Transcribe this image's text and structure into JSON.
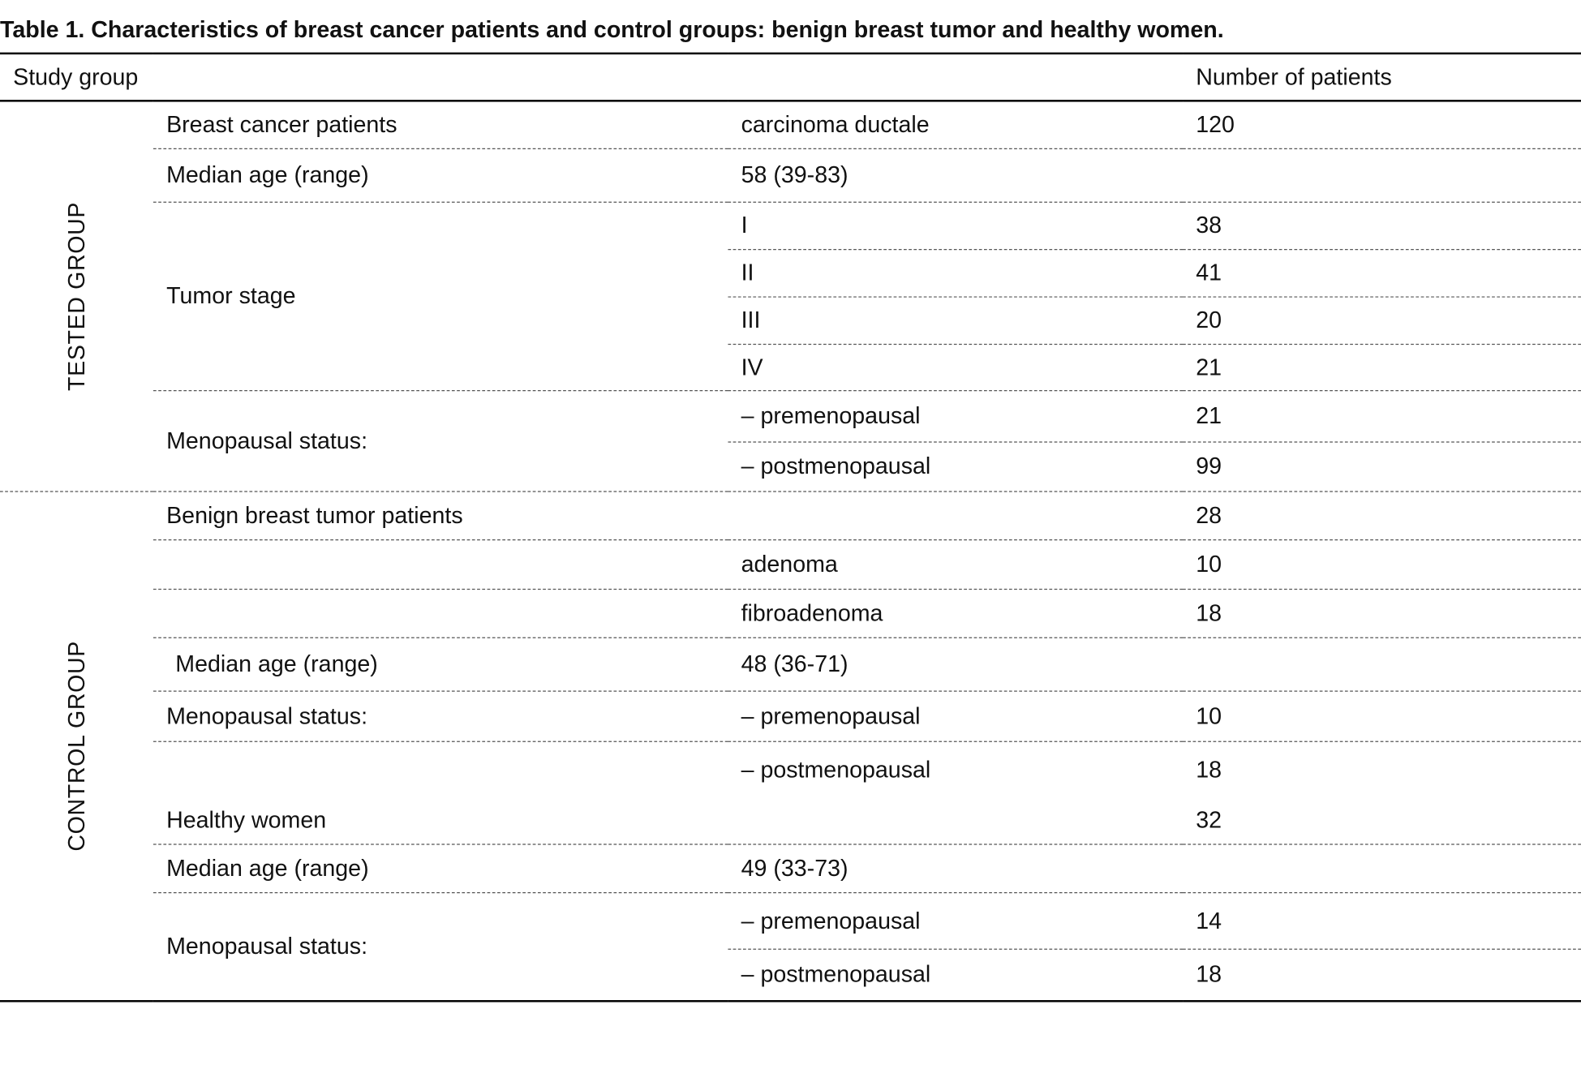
{
  "caption": "Table 1. Characteristics of breast cancer patients and control groups: benign breast tumor and healthy women.",
  "header": {
    "study_group": "Study group",
    "number_of_patients": "Number of patients"
  },
  "tested": {
    "group_label": "TESTED GROUP",
    "breast_cancer_label": "Breast cancer patients",
    "breast_cancer_type": "carcinoma ductale",
    "breast_cancer_count": "120",
    "median_age_label": "Median age (range)",
    "median_age_value": "58 (39-83)",
    "tumor_stage_label": "Tumor stage",
    "stages": [
      {
        "stage": "I",
        "count": "38"
      },
      {
        "stage": "II",
        "count": "41"
      },
      {
        "stage": "III",
        "count": "20"
      },
      {
        "stage": "IV",
        "count": "21"
      }
    ],
    "menopausal_label": "Menopausal status:",
    "premenopausal": "– premenopausal",
    "premenopausal_count": "21",
    "postmenopausal": "– postmenopausal",
    "postmenopausal_count": "99"
  },
  "control": {
    "group_label": "CONTROL GROUP",
    "benign_label": "Benign breast tumor patients",
    "benign_count": "28",
    "adenoma": "adenoma",
    "adenoma_count": "10",
    "fibroadenoma": "fibroadenoma",
    "fibroadenoma_count": "18",
    "benign_median_age_label": "Median age (range)",
    "benign_median_age_value": "48 (36-71)",
    "benign_menopausal_label": "Menopausal status:",
    "benign_premenopausal": "– premenopausal",
    "benign_premenopausal_count": "10",
    "benign_postmenopausal": "– postmenopausal",
    "benign_postmenopausal_count": "18",
    "healthy_label": "Healthy women",
    "healthy_count": "32",
    "healthy_median_age_label": "Median age (range)",
    "healthy_median_age_value": "49 (33-73)",
    "healthy_menopausal_label": "Menopausal status:",
    "healthy_premenopausal": "– premenopausal",
    "healthy_premenopausal_count": "14",
    "healthy_postmenopausal": "– postmenopausal",
    "healthy_postmenopausal_count": "18"
  }
}
